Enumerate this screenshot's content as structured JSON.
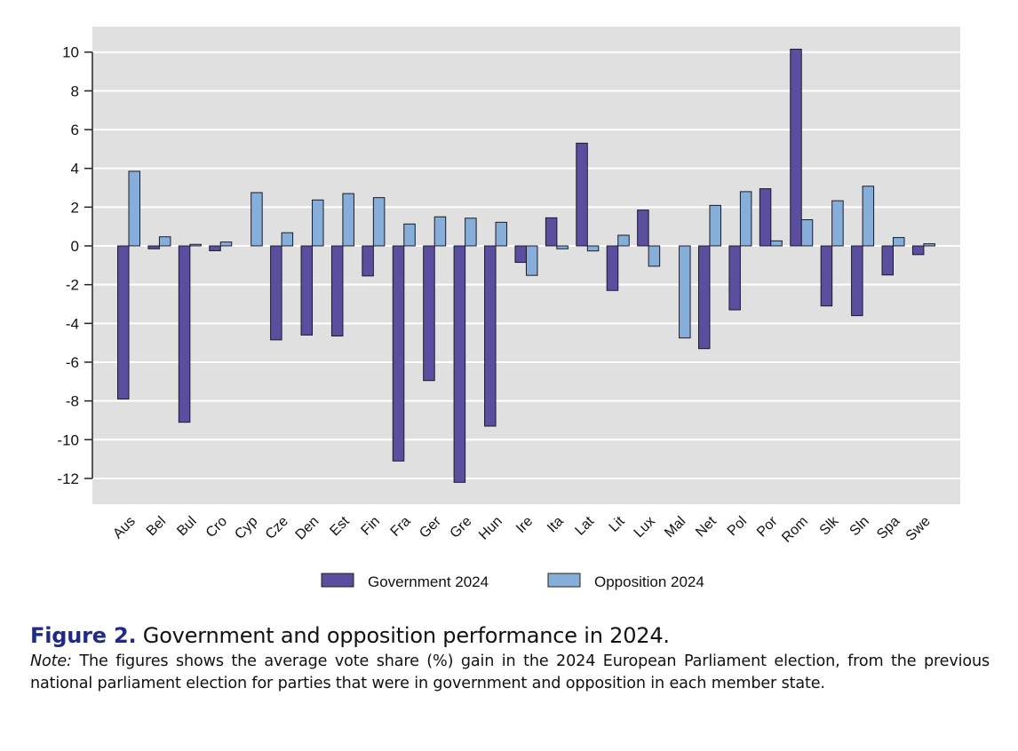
{
  "chart_data": {
    "type": "bar",
    "title": "",
    "xlabel": "",
    "ylabel": "",
    "ylim": [
      -13.3,
      11.3
    ],
    "yticks": [
      10,
      8,
      6,
      4,
      2,
      0,
      -2,
      -4,
      -6,
      -8,
      -10,
      -12
    ],
    "grid": true,
    "legend_position": "bottom-center",
    "categories": [
      "Aus",
      "Bel",
      "Bul",
      "Cro",
      "Cyp",
      "Cze",
      "Den",
      "Est",
      "Fin",
      "Fra",
      "Ger",
      "Gre",
      "Hun",
      "Ire",
      "Ita",
      "Lat",
      "Lit",
      "Lux",
      "Mal",
      "Net",
      "Pol",
      "Por",
      "Rom",
      "Slk",
      "Sln",
      "Spa",
      "Swe"
    ],
    "series": [
      {
        "name": "Government 2024",
        "color": "#5a4f9f",
        "values": [
          -7.9,
          -0.15,
          -9.1,
          -0.25,
          null,
          -4.85,
          -4.6,
          -4.65,
          -1.55,
          -11.1,
          -6.95,
          -12.2,
          -9.3,
          -0.85,
          1.45,
          5.3,
          -2.3,
          1.85,
          null,
          -5.3,
          -3.3,
          2.95,
          10.15,
          -3.1,
          -3.6,
          -1.5,
          -0.45
        ]
      },
      {
        "name": "Opposition 2024",
        "color": "#87aed9",
        "values": [
          3.85,
          0.47,
          0.08,
          0.2,
          2.75,
          0.68,
          2.37,
          2.7,
          2.49,
          1.13,
          1.5,
          1.43,
          1.22,
          -1.52,
          -0.15,
          -0.26,
          0.55,
          -1.05,
          -4.75,
          2.09,
          2.8,
          0.26,
          1.35,
          2.33,
          3.08,
          0.43,
          0.11
        ]
      }
    ]
  },
  "caption": {
    "figure_label": "Figure 2.",
    "title": " Government and opposition performance in 2024.",
    "note_label": "Note:",
    "note_text": " The figures shows the average vote share (%) gain in the 2024 European Parliament election, from the previous national parliament election for parties that were in government and opposition in each member state."
  },
  "colors": {
    "panel_background": "#e0e0e0",
    "gridline": "#ffffff",
    "caption_label": "#1f2a8a"
  }
}
